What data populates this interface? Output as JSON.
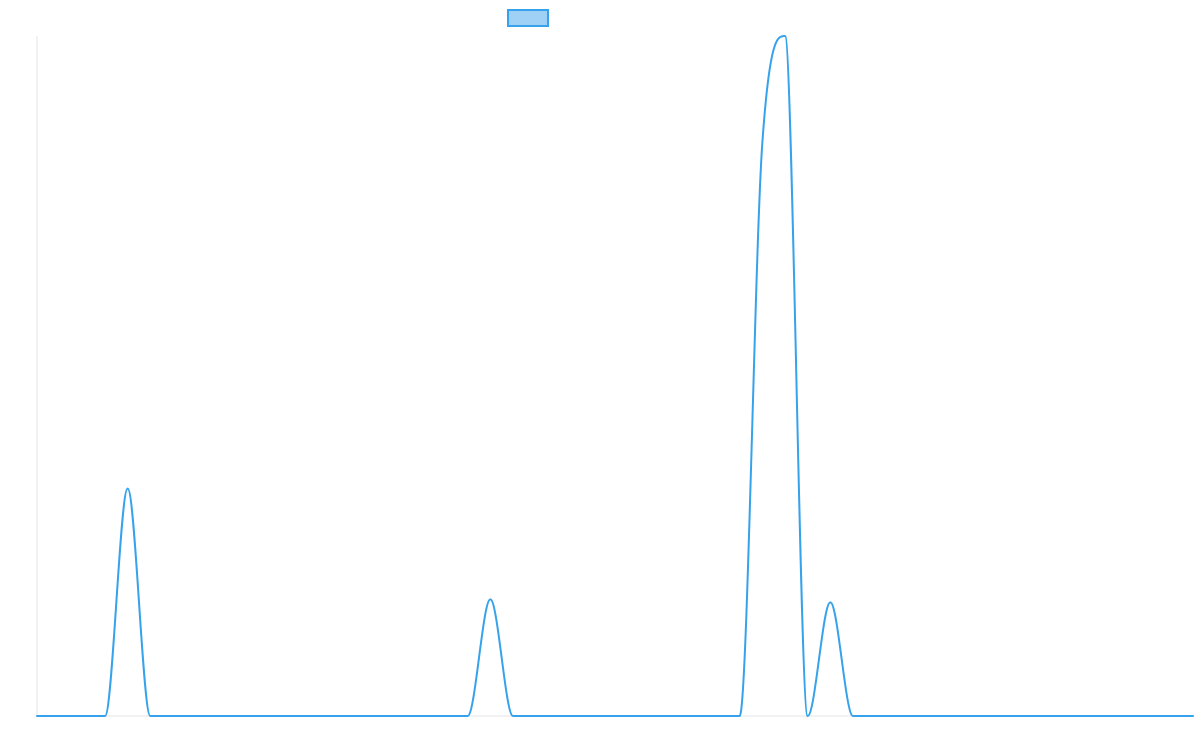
{
  "chart_data": {
    "type": "line",
    "title": "",
    "xlabel": "",
    "ylabel": "",
    "grid": false,
    "legend": {
      "position": "top-center",
      "entries": [
        {
          "label": "",
          "swatch_fill": "#9ed1f5",
          "swatch_stroke": "#36a2eb"
        }
      ]
    },
    "xlim": [
      0,
      51
    ],
    "ylim": [
      0,
      7
    ],
    "series": [
      {
        "color": "#36a2eb",
        "x": [
          0,
          1,
          2,
          3,
          4,
          5,
          6,
          7,
          8,
          9,
          10,
          11,
          12,
          13,
          14,
          15,
          16,
          17,
          18,
          19,
          20,
          21,
          22,
          23,
          24,
          25,
          26,
          27,
          28,
          29,
          30,
          31,
          32,
          33,
          34,
          35,
          36,
          37,
          38,
          39,
          40,
          41,
          42,
          43,
          44,
          45,
          46,
          47,
          48,
          49,
          50,
          51
        ],
        "values": [
          0,
          0,
          0,
          0,
          2.34,
          0,
          0,
          0,
          0,
          0,
          0,
          0,
          0,
          0,
          0,
          0,
          0,
          0,
          0,
          0,
          1.2,
          0,
          0,
          0,
          0,
          0,
          0,
          0,
          0,
          0,
          0,
          0,
          5.9,
          7.0,
          0,
          1.17,
          0,
          0,
          0,
          0,
          0,
          0,
          0,
          0,
          0,
          0,
          0,
          0,
          0,
          0,
          0,
          0
        ]
      }
    ]
  }
}
